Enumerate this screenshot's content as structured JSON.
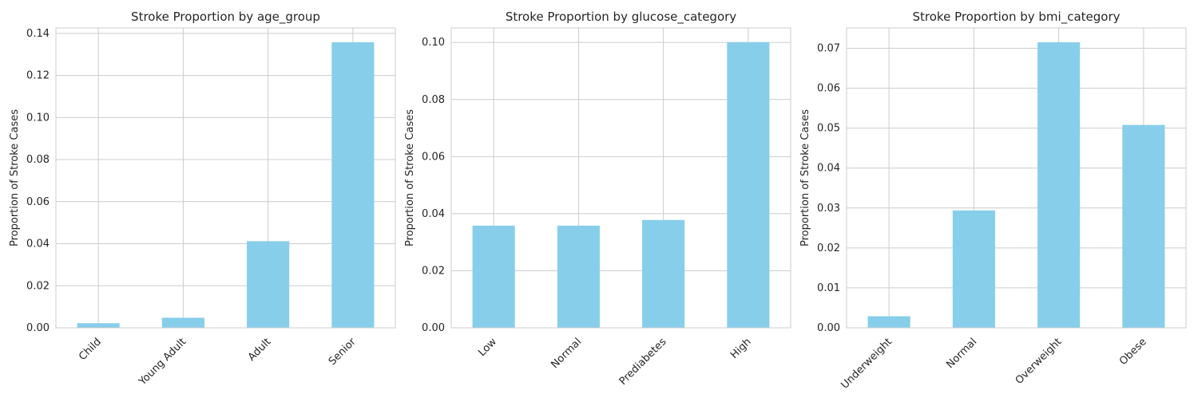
{
  "chart_data": [
    {
      "type": "bar",
      "title": "Stroke Proportion by age_group",
      "xlabel": "",
      "ylabel": "Proportion of Stroke Cases",
      "categories": [
        "Child",
        "Young Adult",
        "Adult",
        "Senior"
      ],
      "values": [
        0.0022,
        0.0048,
        0.0412,
        0.1358
      ],
      "ylim": [
        0,
        0.1426
      ],
      "yticks": [
        0,
        0.02,
        0.04,
        0.06,
        0.08,
        0.1,
        0.12,
        0.14
      ],
      "ytick_labels": [
        "0.00",
        "0.02",
        "0.04",
        "0.06",
        "0.08",
        "0.10",
        "0.12",
        "0.14"
      ],
      "grid": true,
      "bar_color": "#87ceeb"
    },
    {
      "type": "bar",
      "title": "Stroke Proportion by glucose_category",
      "xlabel": "",
      "ylabel": "Proportion of Stroke Cases",
      "categories": [
        "Low",
        "Normal",
        "Prediabetes",
        "High"
      ],
      "values": [
        0.0358,
        0.0358,
        0.0378,
        0.1001
      ],
      "ylim": [
        0,
        0.1051
      ],
      "yticks": [
        0,
        0.02,
        0.04,
        0.06,
        0.08,
        0.1
      ],
      "ytick_labels": [
        "0.00",
        "0.02",
        "0.04",
        "0.06",
        "0.08",
        "0.10"
      ],
      "grid": true,
      "bar_color": "#87ceeb"
    },
    {
      "type": "bar",
      "title": "Stroke Proportion by bmi_category",
      "xlabel": "",
      "ylabel": "Proportion of Stroke Cases",
      "categories": [
        "Underweight",
        "Normal",
        "Overweight",
        "Obese"
      ],
      "values": [
        0.0029,
        0.0294,
        0.0715,
        0.0508
      ],
      "ylim": [
        0,
        0.0751
      ],
      "yticks": [
        0,
        0.01,
        0.02,
        0.03,
        0.04,
        0.05,
        0.06,
        0.07
      ],
      "ytick_labels": [
        "0.00",
        "0.01",
        "0.02",
        "0.03",
        "0.04",
        "0.05",
        "0.06",
        "0.07"
      ],
      "grid": true,
      "bar_color": "#87ceeb"
    }
  ],
  "colors": {
    "bar": "#87ceeb",
    "grid": "#cccccc",
    "axes_edge": "#cccccc",
    "text": "#262626"
  }
}
